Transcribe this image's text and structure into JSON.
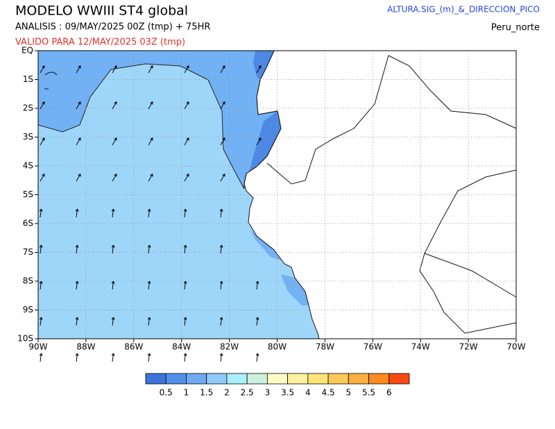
{
  "header": {
    "title": "MODELO WWIII ST4 global",
    "analysis": "ANALISIS : 09/MAY/2025 00Z  (tmp) + 75HR",
    "valid": "VALIDO PARA  12/MAY/2025 03Z  (tmp)",
    "variable": "ALTURA.SIG_(m)_&_DIRECCION_PICO",
    "region": "Peru_norte"
  },
  "map": {
    "xticks": [
      "90W",
      "88W",
      "86W",
      "84W",
      "82W",
      "80W",
      "78W",
      "76W",
      "74W",
      "72W",
      "70W"
    ],
    "yticks": [
      "EQ",
      "1S",
      "2S",
      "3S",
      "4S",
      "5S",
      "6S",
      "7S",
      "8S",
      "9S",
      "10S"
    ]
  },
  "colorbar": {
    "levels": [
      0.5,
      1,
      1.5,
      2,
      2.5,
      3,
      3.5,
      4,
      4.5,
      5,
      5.5,
      6
    ],
    "colors": [
      "#3c74d9",
      "#5091e8",
      "#6eaaf3",
      "#8dcbfa",
      "#aaf0fc",
      "#ccf0dc",
      "#fdfcc8",
      "#fdf0a0",
      "#fde47a",
      "#fcc85a",
      "#fbb040",
      "#fb8a20",
      "#f84a10"
    ]
  }
}
